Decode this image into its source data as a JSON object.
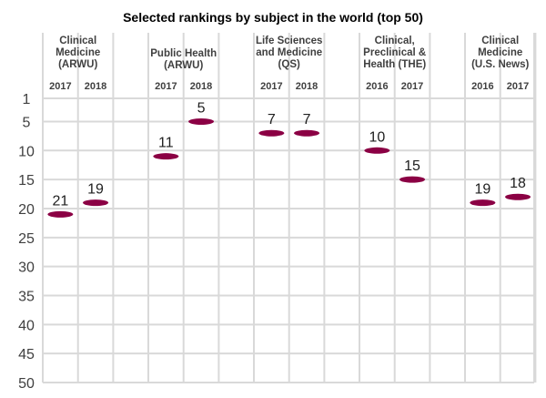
{
  "chart_data": {
    "type": "scatter",
    "title": "Selected rankings by subject in the world (top 50)",
    "yticks": [
      1,
      5,
      10,
      15,
      20,
      25,
      30,
      35,
      40,
      45,
      50
    ],
    "ylim": [
      1,
      50
    ],
    "y_inverted": true,
    "grid": true,
    "marker_color": "#8b0044",
    "groups": [
      {
        "label_lines": [
          "Clinical",
          "Medicine",
          "(ARWU)"
        ],
        "years": [
          "2017",
          "2018"
        ],
        "values": [
          21,
          19
        ]
      },
      {
        "label_lines": [
          "Public Health",
          "(ARWU)"
        ],
        "years": [
          "2017",
          "2018"
        ],
        "values": [
          11,
          5
        ]
      },
      {
        "label_lines": [
          "Life Sciences",
          "and Medicine",
          "(QS)"
        ],
        "years": [
          "2017",
          "2018"
        ],
        "values": [
          7,
          7
        ]
      },
      {
        "label_lines": [
          "Clinical,",
          "Preclinical &",
          "Health (THE)"
        ],
        "years": [
          "2016",
          "2017"
        ],
        "values": [
          10,
          15
        ]
      },
      {
        "label_lines": [
          "Clinical",
          "Medicine",
          "(U.S. News)"
        ],
        "years": [
          "2016",
          "2017"
        ],
        "values": [
          19,
          18
        ]
      }
    ]
  }
}
